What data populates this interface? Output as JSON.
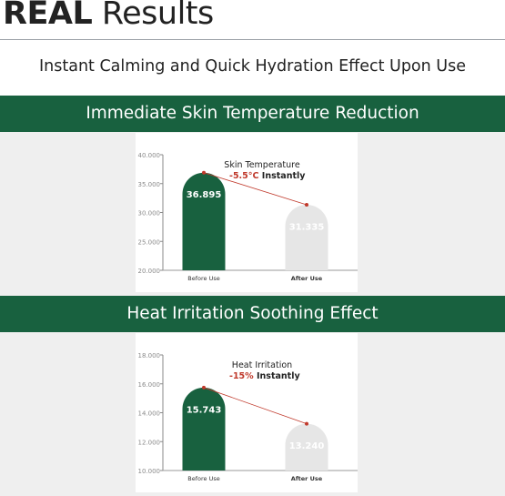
{
  "header": {
    "title_bold": "REAL",
    "title_rest": " Results",
    "subtitle": "Instant Calming and Quick Hydration Effect Upon Use"
  },
  "colors": {
    "brand_green": "#18613f",
    "after_bar": "#e6e6e6",
    "accent_red": "#c0392b"
  },
  "panels": [
    {
      "heading": "Immediate Skin Temperature Reduction"
    },
    {
      "heading": "Heat Irritation Soothing Effect"
    }
  ],
  "chart_data": [
    {
      "type": "bar",
      "title": "",
      "categories": [
        "Before Use",
        "After Use"
      ],
      "values": [
        36.895,
        31.335
      ],
      "value_labels": [
        "36.895",
        "31.335"
      ],
      "ylim": [
        20,
        40
      ],
      "yticks": [
        "20.000",
        "25.000",
        "30.000",
        "35.000",
        "40.000"
      ],
      "annotation": {
        "line1": "Skin Temperature",
        "change": "-5.5°C",
        "suffix": "Instantly"
      },
      "grid": false
    },
    {
      "type": "bar",
      "title": "",
      "categories": [
        "Before Use",
        "After Use"
      ],
      "values": [
        15.743,
        13.24
      ],
      "value_labels": [
        "15.743",
        "13.240"
      ],
      "ylim": [
        10,
        18
      ],
      "yticks": [
        "10.000",
        "12.000",
        "14.000",
        "16.000",
        "18.000"
      ],
      "annotation": {
        "line1": "Heat Irritation",
        "change": "-15%",
        "suffix": "Instantly"
      },
      "grid": false
    }
  ]
}
